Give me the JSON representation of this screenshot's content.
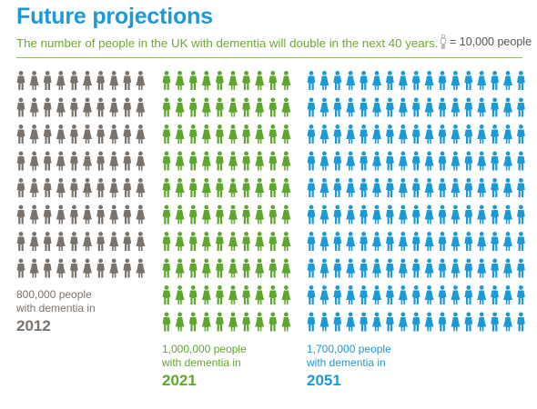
{
  "header": {
    "title": "Future projections",
    "subtitle": "The number of people in the UK with dementia will double in the next 40 years.",
    "legend_text": "= 10,000 people",
    "legend_icon": "person-icon"
  },
  "colors": {
    "title": "#1a9ad6",
    "subtitle": "#6aaa2f",
    "rule": "#8bc34a",
    "group_2012": "#7a726c",
    "group_2021": "#5fa62e",
    "group_2051": "#1a9ad6",
    "legend_icon": "#9e9e9e"
  },
  "groups": [
    {
      "id": "2012",
      "line1": "800,000 people",
      "line2": "with dementia in",
      "year": "2012",
      "icons": 80,
      "columns": 10,
      "color": "#7a726c"
    },
    {
      "id": "2021",
      "line1": "1,000,000 people",
      "line2": "with dementia in",
      "year": "2021",
      "icons": 100,
      "columns": 10,
      "color": "#5fa62e"
    },
    {
      "id": "2051",
      "line1": "1,700,000 people",
      "line2": "with dementia in",
      "year": "2051",
      "icons": 170,
      "columns": 17,
      "color": "#1a9ad6"
    }
  ]
}
